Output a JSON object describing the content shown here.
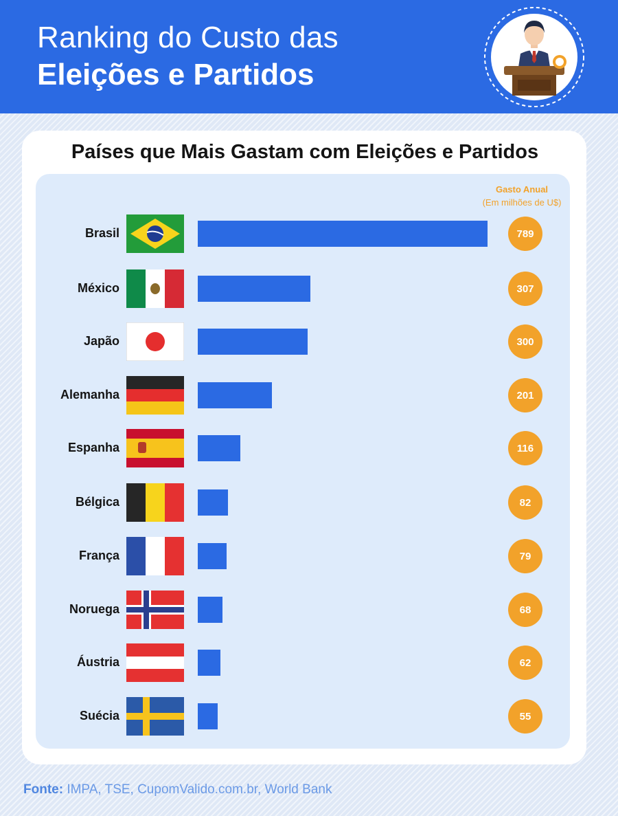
{
  "header": {
    "title_line1": "Ranking do Custo das",
    "title_line2": "Eleições e Partidos"
  },
  "card": {
    "title": "Países que Mais Gastam com Eleições e Partidos",
    "column_header_line1": "Gasto Anual",
    "column_header_line2": "(Em milhões de U$)"
  },
  "footer": {
    "source_label": "Fonte:",
    "source_text": " IMPA, TSE, CupomValido.com.br, World Bank"
  },
  "colors": {
    "primary_blue": "#2b6ae3",
    "badge_orange": "#f2a22a",
    "panel_bg": "#deebfb"
  },
  "chart_data": {
    "type": "bar",
    "orientation": "horizontal",
    "categories": [
      "Brasil",
      "México",
      "Japão",
      "Alemanha",
      "Espanha",
      "Bélgica",
      "França",
      "Noruega",
      "Áustria",
      "Suécia"
    ],
    "values": [
      789,
      307,
      300,
      201,
      116,
      82,
      79,
      68,
      62,
      55
    ],
    "value_labels": [
      "789",
      "307",
      "300",
      "201",
      "116",
      "82",
      "79",
      "68",
      "62",
      "55"
    ],
    "flags": [
      "brazil-flag-icon",
      "mexico-flag-icon",
      "japan-flag-icon",
      "germany-flag-icon",
      "spain-flag-icon",
      "belgium-flag-icon",
      "france-flag-icon",
      "norway-flag-icon",
      "austria-flag-icon",
      "sweden-flag-icon"
    ],
    "title": "Países que Mais Gastam com Eleições e Partidos",
    "value_axis_label": "Gasto Anual (Em milhões de U$)",
    "grid": false,
    "legend": "none"
  }
}
